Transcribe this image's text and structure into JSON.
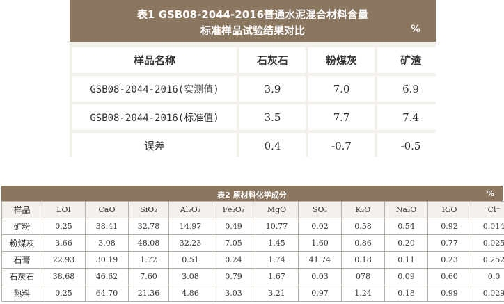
{
  "table1": {
    "title_line1": "表1    GSB08-2044-2016普通水泥混合材料含量",
    "title_line2": "标准样品试验结果对比",
    "unit": "%",
    "headers": [
      "样品名称",
      "石灰石",
      "粉煤灰",
      "矿渣"
    ],
    "rows": [
      [
        "GSB08-2044-2016(实测值)",
        "3.9",
        "7.0",
        "6.9"
      ],
      [
        "GSB08-2044-2016(标准值)",
        "3.5",
        "7.7",
        "7.4"
      ],
      [
        "误差",
        "0.4",
        "-0.7",
        "-0.5"
      ]
    ]
  },
  "table2": {
    "title": "表2    原材料化学成分",
    "unit": "%",
    "headers": [
      "样品",
      "LOI",
      "CaO",
      "SiO₂",
      "Al₂O₃",
      "Fe₂O₃",
      "MgO",
      "SO₃",
      "K₂O",
      "Na₂O",
      "R₂O",
      "Cl⁻"
    ],
    "rows": [
      [
        "矿粉",
        "0.25",
        "38.41",
        "32.78",
        "14.97",
        "0.49",
        "10.77",
        "0.02",
        "0.58",
        "0.54",
        "0.92",
        "0.014"
      ],
      [
        "粉煤灰",
        "3.66",
        "3.08",
        "48.08",
        "32.23",
        "7.05",
        "1.45",
        "1.60",
        "0.86",
        "0.20",
        "0.77",
        "0.025"
      ],
      [
        "石膏",
        "22.93",
        "30.19",
        "1.72",
        "0.51",
        "0.24",
        "1.74",
        "41.74",
        "0.18",
        "0.11",
        "0.23",
        "0.252"
      ],
      [
        "石灰石",
        "38.68",
        "46.62",
        "7.60",
        "3.08",
        "0.79",
        "1.67",
        "0.03",
        "078",
        "0.09",
        "0.60",
        "0.0"
      ],
      [
        "熟料",
        "0.25",
        "64.70",
        "21.36",
        "4.86",
        "3.03",
        "3.21",
        "0.97",
        "1.24",
        "0.18",
        "0.99",
        "0.029"
      ]
    ]
  }
}
